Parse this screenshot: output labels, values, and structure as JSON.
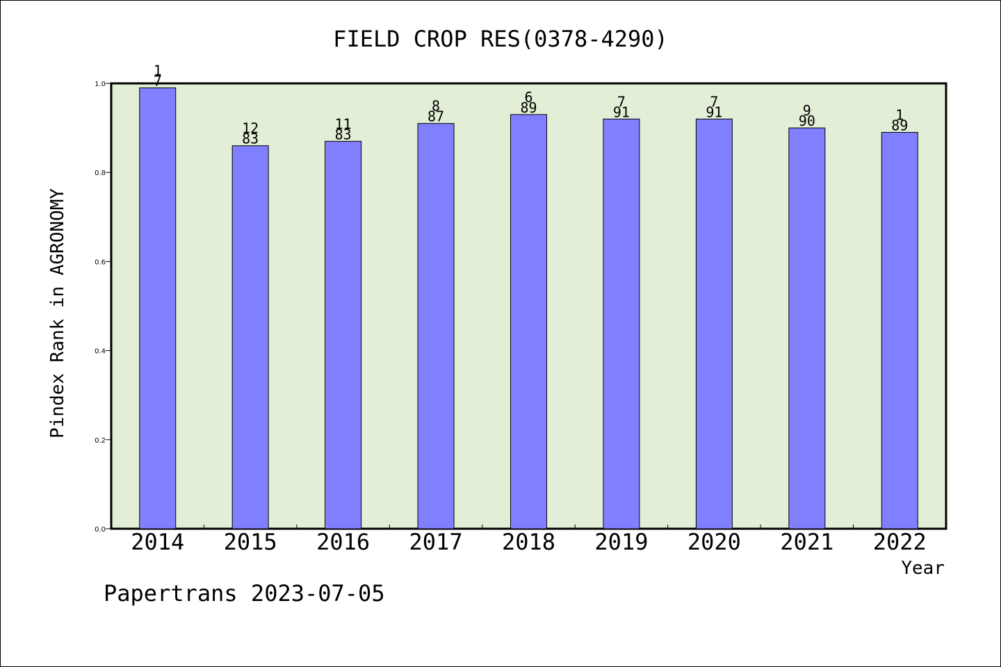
{
  "chart_data": {
    "type": "bar",
    "title": "FIELD CROP RES(0378-4290)",
    "xlabel": "Year",
    "ylabel": "Pindex Rank in AGRONOMY",
    "categories": [
      "2014",
      "2015",
      "2016",
      "2017",
      "2018",
      "2019",
      "2020",
      "2021",
      "2022"
    ],
    "values": [
      0.99,
      0.86,
      0.87,
      0.91,
      0.93,
      0.92,
      0.92,
      0.9,
      0.89
    ],
    "label_top": [
      "1",
      "12",
      "11",
      "8",
      "6",
      "7",
      "7",
      "9",
      "1"
    ],
    "label_bottom": [
      "7",
      "83",
      "83",
      "87",
      "89",
      "91",
      "91",
      "90",
      "89"
    ],
    "ylim": [
      0,
      1.0
    ],
    "yticks": [
      "0.0",
      "0.2",
      "0.4",
      "0.6",
      "0.8",
      "1.0"
    ],
    "grid": false,
    "colors": {
      "bar": "#8080ff",
      "plot_background": "#e2efd6",
      "axis": "#000000"
    }
  },
  "footer": {
    "text": "Papertrans 2023-07-05"
  }
}
